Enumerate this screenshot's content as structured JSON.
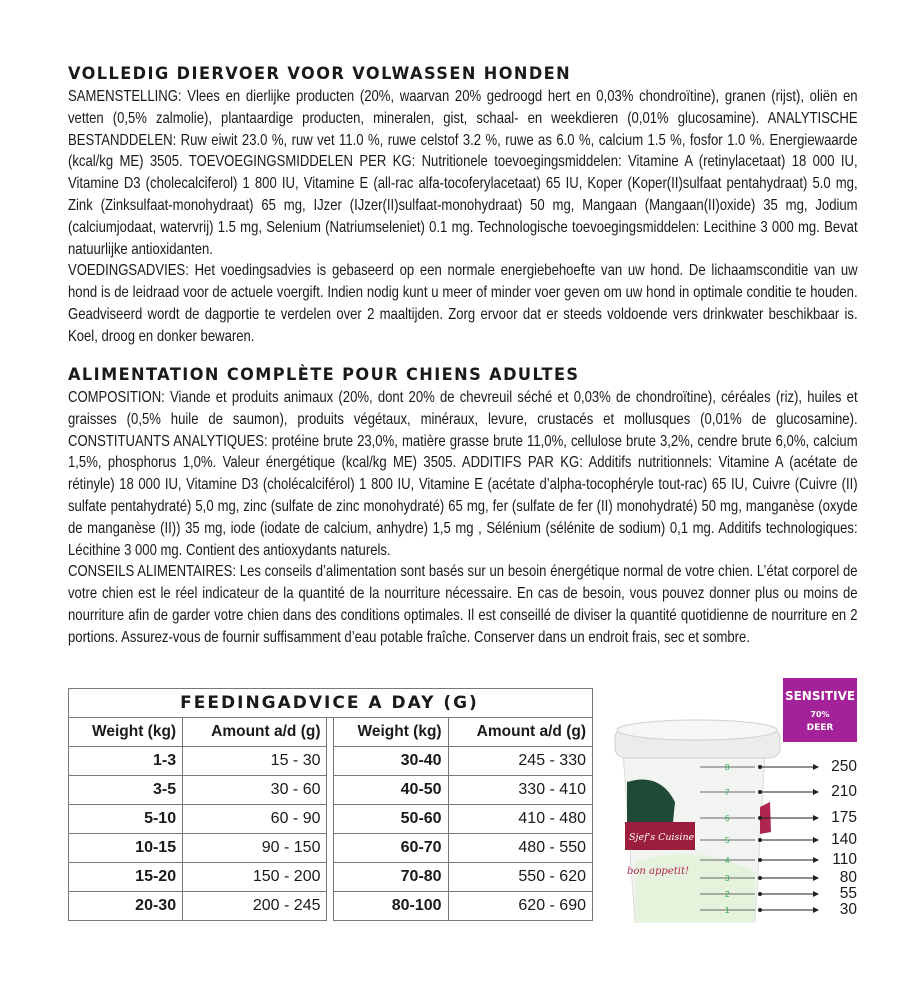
{
  "nl": {
    "heading": "Volledig diervoer voor volwassen honden",
    "composition": "SAMENSTELLING: Vlees en dierlijke producten (20%, waarvan 20% gedroogd hert en 0,03% chondroïtine), granen (rijst), oliën en vetten (0,5% zalmolie), plantaardige producten, mineralen, gist, schaal- en weekdieren (0,01% glucosamine). ANALYTISCHE BESTANDDELEN: Ruw eiwit 23.0 %, ruw vet 11.0 %, ruwe celstof 3.2 %, ruwe as 6.0 %, calcium 1.5 %, fosfor 1.0 %. Energiewaarde (kcal/kg ME) 3505. TOEVOEGINGSMIDDELEN PER KG: Nutritionele toevoegingsmiddelen: Vitamine A (retinylacetaat) 18 000 IU, Vitamine D3 (cholecalciferol) 1 800 IU, Vitamine E (all-rac alfa-tocoferylacetaat) 65 IU, Koper (Koper(II)sulfaat pentahydraat) 5.0 mg, Zink (Zinksulfaat-monohydraat) 65 mg, IJzer (IJzer(II)sulfaat-monohydraat) 50 mg, Mangaan (Mangaan(II)oxide) 35 mg, Jodium (calciumjodaat, watervrij) 1.5 mg, Selenium (Natriumseleniet) 0.1 mg. Technologische toevoegingsmiddelen: Lecithine 3 000 mg. Bevat natuurlijke antioxidanten.",
    "advice": "VOEDINGSADVIES: Het voedingsadvies is gebaseerd op een normale energiebehoefte van uw hond. De lichaamsconditie van uw hond is de leidraad voor de actuele voergift. Indien nodig kunt u meer of minder voer geven om uw hond in optimale conditie te houden. Geadviseerd wordt de dagportie te verdelen over 2 maaltijden. Zorg ervoor dat er steeds voldoende vers drinkwater beschikbaar is. Koel, droog en donker bewaren."
  },
  "fr": {
    "heading": "Alimentation complète pour chiens adultes",
    "composition": "COMPOSITION: Viande et produits animaux (20%, dont 20% de chevreuil séché et 0,03% de chondroïtine), céréales (riz), huiles et graisses (0,5% huile de saumon), produits végétaux, minéraux, levure, crustacés et mollusques (0,01% de glucosamine). CONSTITUANTS ANALYTIQUES: protéine brute 23,0%, matière grasse brute 11,0%, cellulose brute 3,2%, cendre brute 6,0%, calcium 1,5%, phosphorus 1,0%. Valeur énergétique (kcal/kg ME) 3505. ADDITIFS PAR KG: Additifs nutritionnels: Vitamine A (acétate de rétinyle) 18 000 IU, Vitamine D3 (cholécalciférol) 1 800 IU, Vitamine E (acétate d’alpha-tocophéryle tout-rac) 65 IU, Cuivre (Cuivre (II) sulfate pentahydraté) 5,0 mg, zinc (sulfate de zinc monohydraté) 65 mg, fer (sulfate de fer (II) monohydraté) 50 mg, manganèse (oxyde de manganèse (II)) 35 mg, iode (iodate de calcium, anhydre) 1,5 mg , Sélénium (sélénite de sodium) 0,1 mg. Additifs technologiques: Lécithine 3 000 mg. Contient des antioxydants naturels.",
    "advice": "CONSEILS ALIMENTAIRES: Les conseils d’alimentation sont basés sur un besoin énergétique normal de votre chien. L’état corporel de votre chien est le réel indicateur de la quantité de la nourriture nécessaire. En cas de besoin, vous pouvez donner plus ou moins de nourriture afin de garder votre chien dans des conditions optimales. Il est conseillé de diviser la quantité quotidienne de nourriture en 2 portions. Assurez-vous de fournir suffisamment d’eau potable fraîche. Conserver dans un endroit frais, sec et sombre."
  },
  "table": {
    "title": "Feedingadvice a day (g)",
    "col_weight": "Weight (kg)",
    "col_amount": "Amount a/d (g)",
    "rows": [
      {
        "w1": "1-3",
        "a1": "15 - 30",
        "w2": "30-40",
        "a2": "245 - 330"
      },
      {
        "w1": "3-5",
        "a1": "30 - 60",
        "w2": "40-50",
        "a2": "330 - 410"
      },
      {
        "w1": "5-10",
        "a1": "60 - 90",
        "w2": "50-60",
        "a2": "410 - 480"
      },
      {
        "w1": "10-15",
        "a1": "90 - 150",
        "w2": "60-70",
        "a2": "480 - 550"
      },
      {
        "w1": "15-20",
        "a1": "150 - 200",
        "w2": "70-80",
        "a2": "550 - 620"
      },
      {
        "w1": "20-30",
        "a1": "200 - 245",
        "w2": "80-100",
        "a2": "620 - 690"
      }
    ]
  },
  "cup": {
    "badge": {
      "title": "SENSITIVE",
      "percent": "70%",
      "meat": "DEER",
      "color": "#a3229a"
    },
    "brand": "Sjef's Cuisine",
    "tagline": "bon appetit!",
    "scale_marks": [
      "8",
      "7",
      "6",
      "5",
      "4",
      "3",
      "2",
      "1"
    ],
    "gram_labels": [
      "250",
      "210",
      "175",
      "140",
      "110",
      "80",
      "55",
      "30"
    ]
  }
}
